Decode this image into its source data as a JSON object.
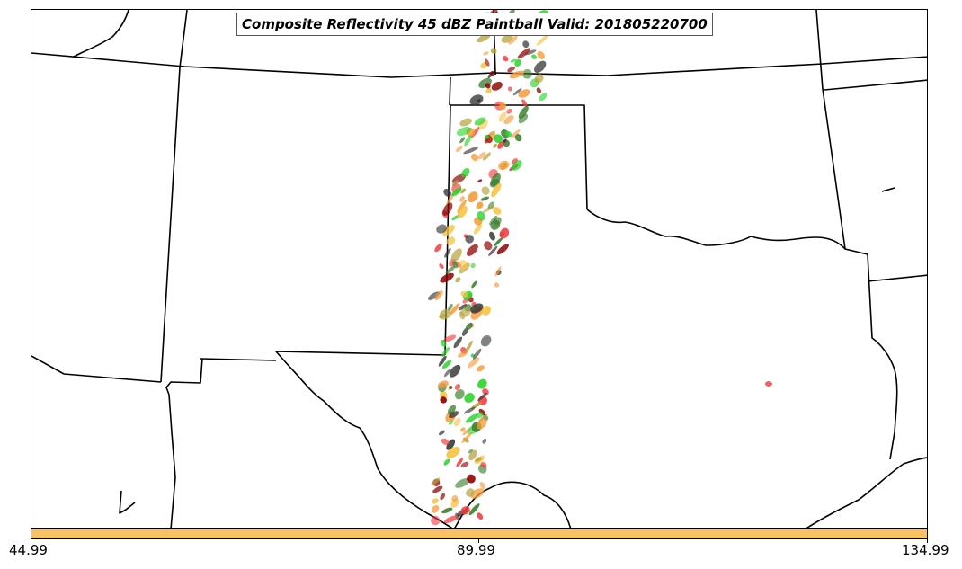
{
  "title": "Composite Reflectivity 45 dBZ Paintball Valid: 201805220700",
  "colorbar": {
    "color": "#f8c264",
    "ticks": [
      "44.99",
      "89.99",
      "134.99"
    ]
  },
  "map": {
    "region": "Southern Great Plains (Oklahoma / Texas panhandle)",
    "boundaries": "state lines and coastlines",
    "paintball_colors": [
      "#f03a3a",
      "#f59b3a",
      "#b3a23a",
      "#3a7d2e",
      "#2ad42a",
      "#8b0000",
      "#333333",
      "#f5c242"
    ]
  }
}
